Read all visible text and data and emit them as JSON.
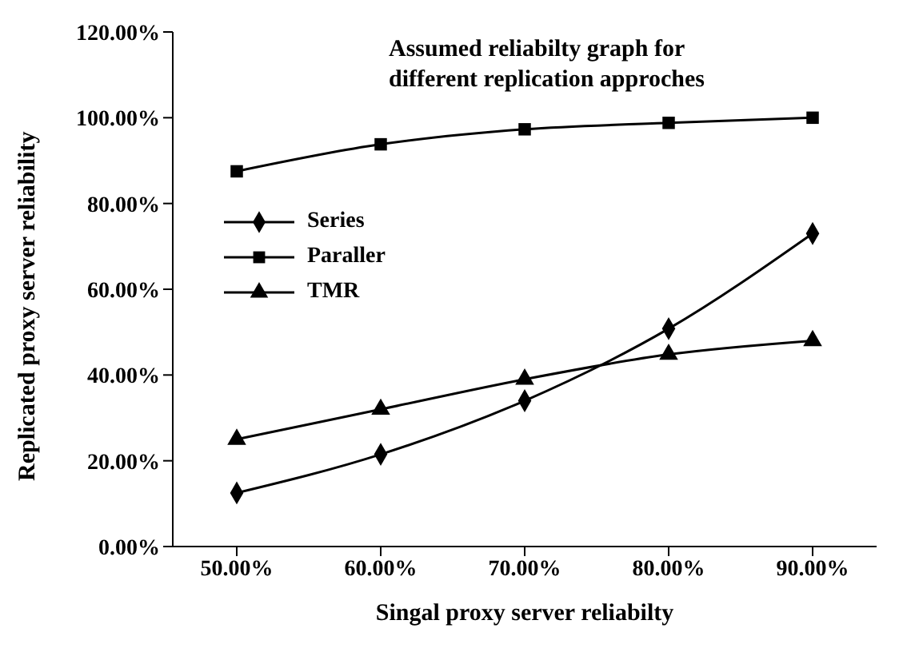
{
  "chart_data": {
    "type": "line",
    "title": "Assumed reliabilty graph for different replication approches",
    "xlabel": "Singal proxy server reliabilty",
    "ylabel": "Replicated proxy server reliability",
    "categories": [
      "50.00%",
      "60.00%",
      "70.00%",
      "80.00%",
      "90.00%"
    ],
    "series": [
      {
        "name": "Series",
        "color": "#000000",
        "marker": "diamond",
        "values": [
          12.5,
          21.5,
          34,
          50.8,
          73
        ]
      },
      {
        "name": "Paraller",
        "color": "#000000",
        "marker": "square",
        "values": [
          87.5,
          93.8,
          97.3,
          98.8,
          100
        ]
      },
      {
        "name": "TMR",
        "color": "#000000",
        "marker": "triangle",
        "values": [
          25,
          32,
          39,
          44.8,
          48
        ]
      }
    ],
    "ylim": [
      0,
      120
    ],
    "yticks": [
      {
        "value": 0,
        "label": "0.00%"
      },
      {
        "value": 20,
        "label": "20.00%"
      },
      {
        "value": 40,
        "label": "40.00%"
      },
      {
        "value": 60,
        "label": "60.00%"
      },
      {
        "value": 80,
        "label": "80.00%"
      },
      {
        "value": 100,
        "label": "100.00%"
      },
      {
        "value": 120,
        "label": "120.00%"
      }
    ],
    "grid": false,
    "legend": "left",
    "line_style": "solid"
  }
}
